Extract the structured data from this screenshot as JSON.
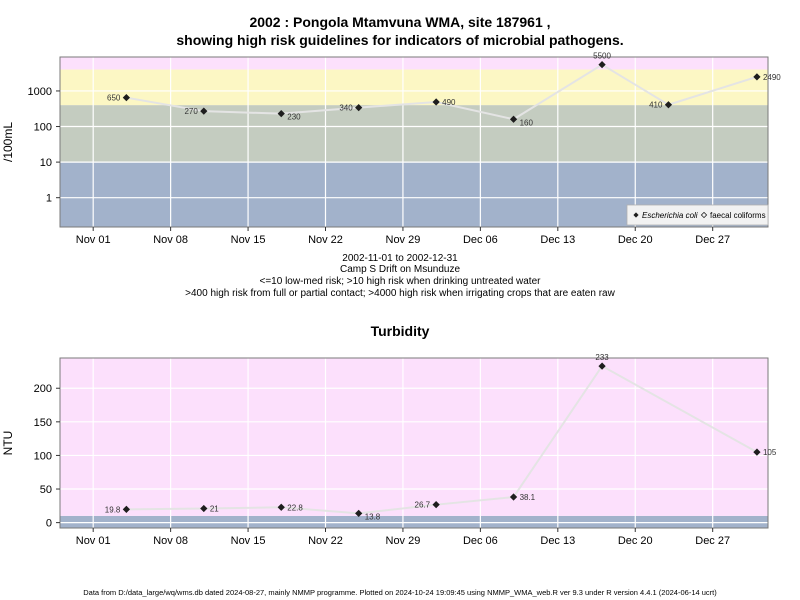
{
  "header": {
    "title_line1": "2002 : Pongola Mtamvuna WMA, site 187961 ,",
    "title_line2": "showing high risk guidelines for indicators of microbial pathogens."
  },
  "notes": {
    "date_range": "2002-11-01 to 2002-12-31",
    "site": "Camp S Drift on Msunduze",
    "line3": "<=10 low-med risk; >10 high risk when drinking untreated water",
    "line4": ">400 high risk from full or partial contact; >4000 high risk when irrigating crops that are eaten raw"
  },
  "footer": "Data from D:/data_large/wq/wms.db dated 2024-08-27, mainly NMMP programme. Plotted on 2024-10-24 19:09:45 using NMMP_WMA_web.R ver 9.3 under R version 4.4.1 (2024-06-14 ucrt)",
  "chart_data": [
    {
      "type": "scatter",
      "title": "",
      "ylabel": "/100mL",
      "yscale": "log",
      "ylim": [
        0.15,
        9000
      ],
      "xlim": [
        "2002-10-29",
        "2003-01-01"
      ],
      "x_ticks": [
        "Nov 01",
        "Nov 08",
        "Nov 15",
        "Nov 22",
        "Nov 29",
        "Dec 06",
        "Dec 13",
        "Dec 20",
        "Dec 27"
      ],
      "x_tick_dates": [
        "2002-11-01",
        "2002-11-08",
        "2002-11-15",
        "2002-11-22",
        "2002-11-29",
        "2002-12-06",
        "2002-12-13",
        "2002-12-20",
        "2002-12-27"
      ],
      "y_ticks": [
        1,
        10,
        100,
        1000
      ],
      "y_tick_labels": [
        "1",
        "10",
        "100",
        "1000"
      ],
      "bands": [
        {
          "from": 0.15,
          "to": 10,
          "color": "#a2b2cb"
        },
        {
          "from": 10,
          "to": 400,
          "color": "#c4ccc0"
        },
        {
          "from": 400,
          "to": 4000,
          "color": "#fcf7c4"
        },
        {
          "from": 4000,
          "to": 9000,
          "color": "#fce0fc"
        }
      ],
      "series": [
        {
          "name": "Escherichia coli",
          "marker": "filled-diamond",
          "x": [
            "2002-11-04",
            "2002-11-11",
            "2002-11-18",
            "2002-11-25",
            "2002-12-02",
            "2002-12-09",
            "2002-12-17",
            "2002-12-23",
            "2002-12-31"
          ],
          "y": [
            650,
            270,
            230,
            340,
            490,
            160,
            5500,
            410,
            2490
          ]
        }
      ],
      "legend": {
        "position": "bottom-right",
        "entries": [
          "Escherichia coli",
          "faecal coliforms"
        ]
      }
    },
    {
      "type": "scatter",
      "title": "Turbidity",
      "ylabel": "NTU",
      "ylim": [
        -8,
        245
      ],
      "xlim": [
        "2002-10-29",
        "2003-01-01"
      ],
      "x_ticks": [
        "Nov 01",
        "Nov 08",
        "Nov 15",
        "Nov 22",
        "Nov 29",
        "Dec 06",
        "Dec 13",
        "Dec 20",
        "Dec 27"
      ],
      "x_tick_dates": [
        "2002-11-01",
        "2002-11-08",
        "2002-11-15",
        "2002-11-22",
        "2002-11-29",
        "2002-12-06",
        "2002-12-13",
        "2002-12-20",
        "2002-12-27"
      ],
      "y_ticks": [
        0,
        50,
        100,
        150,
        200
      ],
      "bands": [
        {
          "from": -8,
          "to": 10,
          "color": "#a2b2cb"
        },
        {
          "from": 10,
          "to": 245,
          "color": "#fce0fc"
        }
      ],
      "series": [
        {
          "name": "",
          "marker": "filled-diamond",
          "x": [
            "2002-11-04",
            "2002-11-11",
            "2002-11-18",
            "2002-11-25",
            "2002-12-02",
            "2002-12-09",
            "2002-12-17",
            "2002-12-31"
          ],
          "y": [
            19.8,
            21,
            22.8,
            13.8,
            26.7,
            38.1,
            233,
            105
          ]
        }
      ]
    }
  ]
}
